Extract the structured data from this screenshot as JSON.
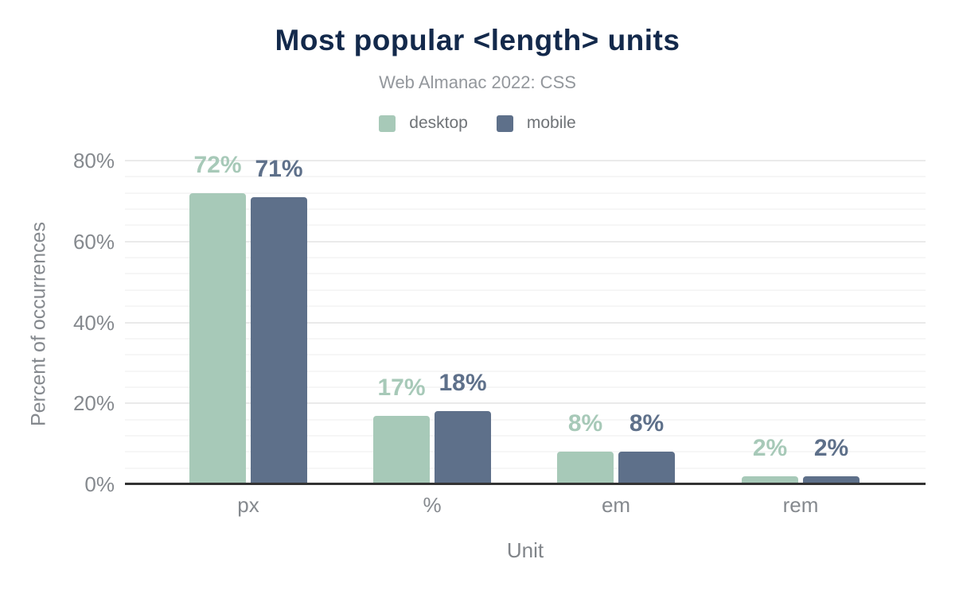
{
  "chart": {
    "title": "Most popular <length> units",
    "subtitle": "Web Almanac 2022: CSS",
    "x_axis_title": "Unit",
    "y_axis_title": "Percent of occurrences",
    "y_tick_labels": [
      "0%",
      "20%",
      "40%",
      "60%",
      "80%"
    ],
    "colors": {
      "title": "#13294b",
      "subtitle_text": "#93979c",
      "axis_text": "#85898e",
      "legend_text": "#6f7377",
      "axis_line": "#333333",
      "major_gridline": "#eaeaea",
      "minor_gridline": "#f6f6f6",
      "background": "#ffffff"
    }
  },
  "chart_data": {
    "type": "bar",
    "title": "Most popular <length> units",
    "subtitle": "Web Almanac 2022: CSS",
    "xlabel": "Unit",
    "ylabel": "Percent of occurrences",
    "categories": [
      "px",
      "%",
      "em",
      "rem"
    ],
    "series": [
      {
        "name": "desktop",
        "color": "#a7c9b8",
        "values": [
          72,
          17,
          8,
          2
        ],
        "data_labels": [
          "72%",
          "17%",
          "8%",
          "2%"
        ]
      },
      {
        "name": "mobile",
        "color": "#5e708a",
        "values": [
          71,
          18,
          8,
          2
        ],
        "data_labels": [
          "71%",
          "18%",
          "8%",
          "2%"
        ]
      }
    ],
    "ylim": [
      0,
      80
    ],
    "y_major_step": 20,
    "y_minor_step": 4,
    "grid": "on",
    "legend_position": "top-center",
    "bar_value_labels_shown": true
  }
}
